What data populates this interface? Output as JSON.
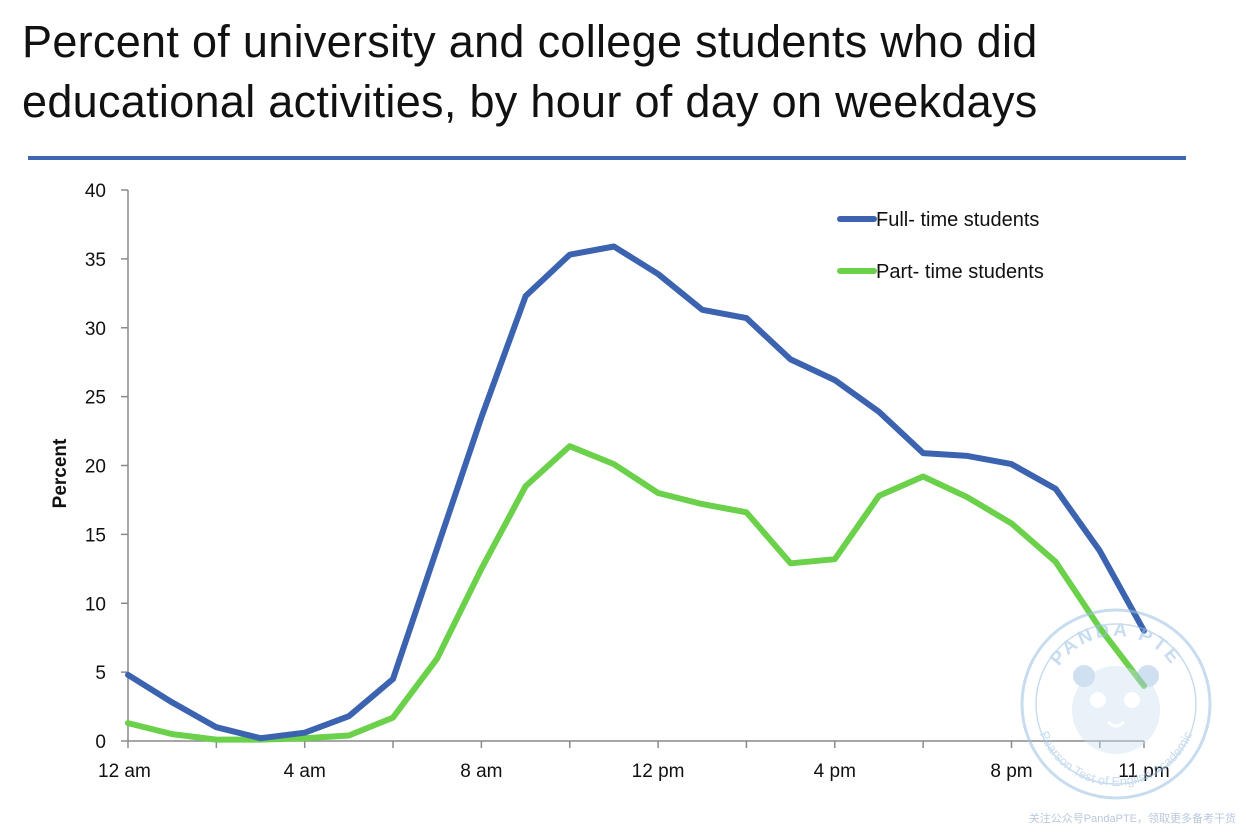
{
  "title": "Percent of university and college students who did educational activities, by hour of day on weekdays",
  "colors": {
    "full_time": "#3b63b0",
    "part_time": "#6bd04a",
    "rule": "#3d67b0",
    "axis": "#8a8a8a"
  },
  "chart_data": {
    "type": "line",
    "ylabel": "Percent",
    "ylim": [
      0,
      40
    ],
    "yticks": [
      "0",
      "5",
      "10",
      "15",
      "20",
      "25",
      "30",
      "35",
      "40"
    ],
    "xlim": [
      0,
      23
    ],
    "xtick_labels": [
      {
        "x": 0,
        "label": "12 am"
      },
      {
        "x": 4,
        "label": "4 am"
      },
      {
        "x": 8,
        "label": "8 am"
      },
      {
        "x": 12,
        "label": "12 pm"
      },
      {
        "x": 16,
        "label": "4 pm"
      },
      {
        "x": 20,
        "label": "8 pm"
      },
      {
        "x": 23,
        "label": "11 pm"
      }
    ],
    "legend_position": "top-right",
    "grid": false,
    "x": [
      0,
      1,
      2,
      3,
      4,
      5,
      6,
      7,
      8,
      9,
      10,
      11,
      12,
      13,
      14,
      15,
      16,
      17,
      18,
      19,
      20,
      21,
      22,
      23
    ],
    "series": [
      {
        "name": "Full- time students",
        "color": "#3b63b0",
        "values": [
          4.8,
          2.8,
          1.0,
          0.2,
          0.6,
          1.8,
          4.5,
          14.0,
          23.5,
          32.3,
          35.3,
          35.9,
          33.9,
          31.3,
          30.7,
          27.7,
          26.2,
          23.9,
          20.9,
          20.7,
          20.1,
          18.3,
          13.8,
          8.0
        ]
      },
      {
        "name": "Part- time students",
        "color": "#6bd04a",
        "values": [
          1.3,
          0.5,
          0.1,
          0.1,
          0.2,
          0.4,
          1.7,
          6.0,
          12.5,
          18.5,
          21.4,
          20.1,
          18.0,
          17.2,
          16.6,
          12.9,
          13.2,
          17.8,
          19.2,
          17.7,
          15.8,
          13.0,
          8.2,
          4.0
        ]
      }
    ]
  },
  "watermark": {
    "brand": "PANDA PTE",
    "tagline": "Pearson Test of English Academic"
  },
  "footer_note": "关注公众号PandaPTE，领取更多备考干货"
}
